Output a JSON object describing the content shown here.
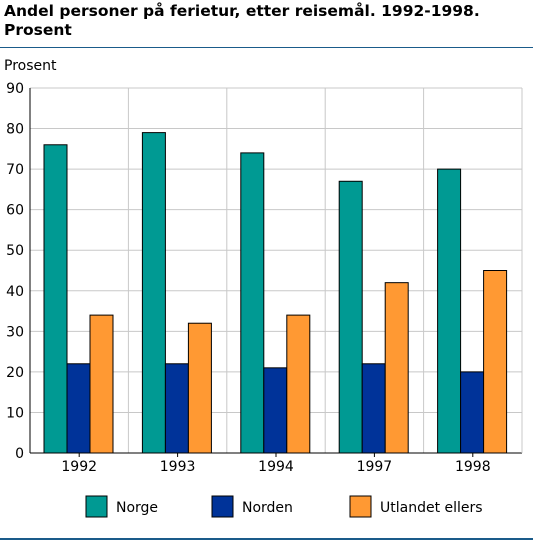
{
  "chart_data": {
    "type": "bar",
    "title_line1": "Andel personer på ferietur, etter reisemål. 1992-1998.",
    "title_line2": "Prosent",
    "ylabel": "Prosent",
    "xlabel": "",
    "categories": [
      "1992",
      "1993",
      "1994",
      "1997",
      "1998"
    ],
    "series": [
      {
        "name": "Norge",
        "color": "#009a93",
        "values": [
          76,
          79,
          74,
          67,
          70
        ]
      },
      {
        "name": "Norden",
        "color": "#003399",
        "values": [
          22,
          22,
          21,
          22,
          20
        ]
      },
      {
        "name": "Utlandet ellers",
        "color": "#ff9933",
        "values": [
          34,
          32,
          34,
          42,
          45
        ]
      }
    ],
    "ylim": [
      0,
      90
    ],
    "yticks": [
      0,
      10,
      20,
      30,
      40,
      50,
      60,
      70,
      80,
      90
    ],
    "grid": true,
    "legend_position": "bottom"
  }
}
